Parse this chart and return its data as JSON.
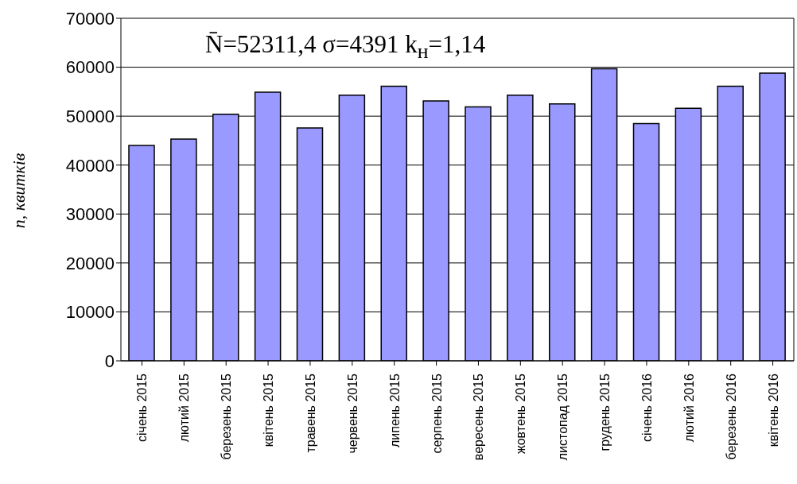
{
  "chart_data": {
    "type": "bar",
    "ylabel": "n, квитків",
    "categories": [
      "січень 2015",
      "лютий 2015",
      "березень 2015",
      "квітень 2015",
      "травень 2015",
      "червень 2015",
      "липень 2015",
      "серпень 2015",
      "вересень 2015",
      "жовтень 2015",
      "листопад 2015",
      "грудень 2015",
      "січень 2016",
      "лютий 2016",
      "березень 2016",
      "квітень 2016"
    ],
    "values": [
      44000,
      45300,
      50400,
      54900,
      47600,
      54300,
      56100,
      53100,
      51900,
      54300,
      52500,
      59700,
      48500,
      51600,
      56100,
      58800
    ],
    "color": "#9999ff",
    "ylim": [
      0,
      70000
    ],
    "yticks": [
      0,
      10000,
      20000,
      30000,
      40000,
      50000,
      60000,
      70000
    ],
    "grid": "y",
    "annotations": [
      "N̄=52311,4  σ=4391  k$_{н}$=1,14"
    ]
  }
}
